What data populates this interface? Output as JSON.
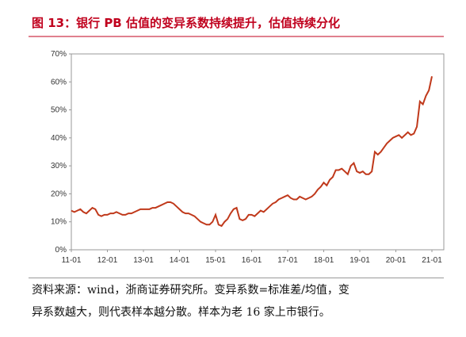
{
  "chart_data": {
    "type": "line",
    "title": "图 13：银行 PB 估值的变异系数持续提升，估值持续分化",
    "categories": [
      "11-01",
      null,
      null,
      null,
      null,
      null,
      null,
      null,
      null,
      null,
      null,
      null,
      "12-01",
      null,
      null,
      null,
      null,
      null,
      null,
      null,
      null,
      null,
      null,
      null,
      "13-01",
      null,
      null,
      null,
      null,
      null,
      null,
      null,
      null,
      null,
      null,
      null,
      "14-01",
      null,
      null,
      null,
      null,
      null,
      null,
      null,
      null,
      null,
      null,
      null,
      "15-01",
      null,
      null,
      null,
      null,
      null,
      null,
      null,
      null,
      null,
      null,
      null,
      "16-01",
      null,
      null,
      null,
      null,
      null,
      null,
      null,
      null,
      null,
      null,
      null,
      "17-01",
      null,
      null,
      null,
      null,
      null,
      null,
      null,
      null,
      null,
      null,
      null,
      "18-01",
      null,
      null,
      null,
      null,
      null,
      null,
      null,
      null,
      null,
      null,
      null,
      "19-01",
      null,
      null,
      null,
      null,
      null,
      null,
      null,
      null,
      null,
      null,
      null,
      "20-01",
      null,
      null,
      null,
      null,
      null,
      null,
      null,
      null,
      null,
      null,
      null,
      "21-01"
    ],
    "series": [
      {
        "color": "#c0391b",
        "values": [
          14,
          13.5,
          14,
          14.5,
          13.5,
          13,
          14,
          15,
          14.5,
          12.5,
          12,
          12.5,
          12.5,
          13,
          13,
          13.5,
          13,
          12.5,
          12.5,
          13,
          13,
          13.5,
          14,
          14.5,
          14.5,
          14.5,
          14.5,
          15,
          15,
          15.5,
          16,
          16.5,
          17,
          17,
          16.5,
          15.5,
          14.5,
          13.5,
          13,
          13,
          12.5,
          12,
          11,
          10,
          9.5,
          9,
          9,
          10,
          12.5,
          9,
          8.5,
          10,
          11,
          13,
          14.5,
          15,
          11,
          10.5,
          11,
          12.5,
          12.5,
          12,
          13,
          14,
          13.5,
          14.5,
          15.5,
          16.5,
          17,
          18,
          18.5,
          19,
          19.5,
          18.5,
          18,
          18,
          19,
          18.5,
          18,
          18.5,
          19,
          20,
          21.5,
          22.5,
          24,
          23,
          25,
          26,
          28.5,
          28.5,
          29,
          28,
          27,
          30,
          31,
          28,
          27.5,
          28,
          27,
          27,
          28,
          35,
          34,
          35,
          36.5,
          38,
          39,
          40,
          40.5,
          41,
          40,
          41,
          42,
          41,
          41.5,
          44,
          53,
          52,
          55,
          57,
          62
        ]
      }
    ],
    "ylim": [
      0,
      70
    ],
    "yticks": [
      {
        "value": 0,
        "label": "0%"
      },
      {
        "value": 10,
        "label": "10%"
      },
      {
        "value": 20,
        "label": "20%"
      },
      {
        "value": 30,
        "label": "30%"
      },
      {
        "value": 40,
        "label": "40%"
      },
      {
        "value": 50,
        "label": "50%"
      },
      {
        "value": 60,
        "label": "60%"
      },
      {
        "value": 70,
        "label": "70%"
      }
    ],
    "note": [
      "资料来源：wind，浙商证券研究所。变异系数=标准差/均值，变",
      "异系数越大，则代表样本越分散。样本为老 16 家上市银行。"
    ]
  }
}
